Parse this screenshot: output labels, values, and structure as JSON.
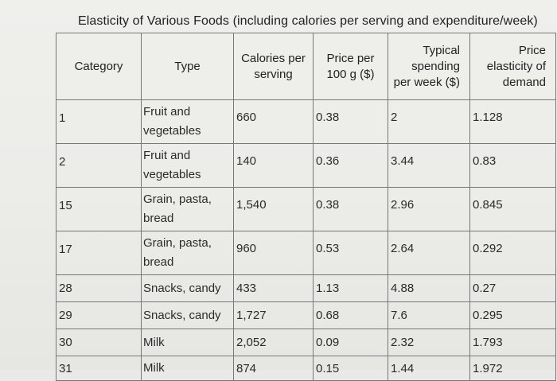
{
  "title": "Elasticity of Various Foods (including calories per serving and expenditure/week)",
  "headers": {
    "category": "Category",
    "type": "Type",
    "calories": "Calories per serving",
    "price": "Price per 100 g ($)",
    "spending": "Typical spending per week ($)",
    "elasticity": "Price elasticity of demand"
  },
  "rows": [
    {
      "category": "1",
      "type": "Fruit and vegetables",
      "calories": "660",
      "price": "0.38",
      "spending": "2",
      "elasticity": "1.128"
    },
    {
      "category": "2",
      "type": "Fruit and vegetables",
      "calories": "140",
      "price": "0.36",
      "spending": "3.44",
      "elasticity": "0.83"
    },
    {
      "category": "15",
      "type": "Grain, pasta, bread",
      "calories": "1,540",
      "price": "0.38",
      "spending": "2.96",
      "elasticity": "0.845"
    },
    {
      "category": "17",
      "type": "Grain, pasta, bread",
      "calories": "960",
      "price": "0.53",
      "spending": "2.64",
      "elasticity": "0.292"
    },
    {
      "category": "28",
      "type": "Snacks, candy",
      "calories": "433",
      "price": "1.13",
      "spending": "4.88",
      "elasticity": "0.27"
    },
    {
      "category": "29",
      "type": "Snacks, candy",
      "calories": "1,727",
      "price": "0.68",
      "spending": "7.6",
      "elasticity": "0.295"
    },
    {
      "category": "30",
      "type": "Milk",
      "calories": "2,052",
      "price": "0.09",
      "spending": "2.32",
      "elasticity": "1.793"
    },
    {
      "category": "31",
      "type": "Milk",
      "calories": "874",
      "price": "0.15",
      "spending": "1.44",
      "elasticity": "1.972"
    }
  ]
}
